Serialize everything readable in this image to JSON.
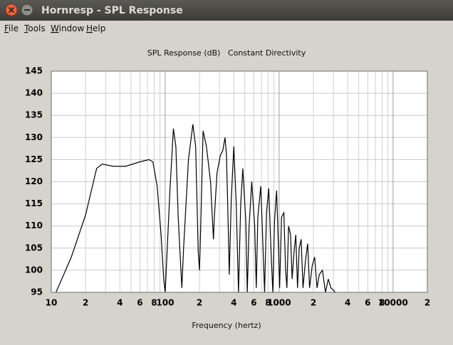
{
  "window": {
    "title": "Hornresp - SPL Response",
    "menu": [
      "File",
      "Tools",
      "Window",
      "Help"
    ]
  },
  "chart_data": {
    "type": "line",
    "title": "SPL Response (dB)   Constant Directivity",
    "x_label": "Frequency (hertz)",
    "log_x": true,
    "grid": true,
    "color": "#000000",
    "xlim": [
      10,
      20000
    ],
    "ylim": [
      95,
      145
    ],
    "yticks": [
      95,
      100,
      105,
      110,
      115,
      120,
      125,
      130,
      135,
      140,
      145
    ],
    "xticks": [
      10,
      {
        "value": 20,
        "label": "2"
      },
      {
        "value": 40,
        "label": "4"
      },
      {
        "value": 60,
        "label": "6"
      },
      {
        "value": 80,
        "label": "8"
      },
      100,
      {
        "value": 200,
        "label": "2"
      },
      {
        "value": 400,
        "label": "4"
      },
      {
        "value": 600,
        "label": "6"
      },
      {
        "value": 800,
        "label": "8"
      },
      1000,
      {
        "value": 2000,
        "label": "2"
      },
      {
        "value": 4000,
        "label": "4"
      },
      {
        "value": 6000,
        "label": "6"
      },
      {
        "value": 8000,
        "label": "8"
      },
      10000,
      {
        "value": 20000,
        "label": "2"
      }
    ],
    "xminor_ticks": [
      30,
      50,
      70,
      90,
      300,
      500,
      700,
      900,
      3000,
      5000,
      7000,
      9000
    ],
    "x": [
      11,
      15,
      20,
      25,
      28,
      35,
      45,
      60,
      72,
      78,
      85,
      92,
      97,
      100,
      110,
      118,
      124,
      130,
      140,
      145,
      160,
      175,
      185,
      195,
      200,
      205,
      215,
      230,
      250,
      265,
      270,
      285,
      305,
      320,
      335,
      345,
      355,
      365,
      380,
      400,
      420,
      440,
      460,
      480,
      510,
      525,
      545,
      575,
      610,
      630,
      650,
      690,
      720,
      745,
      775,
      810,
      850,
      880,
      910,
      950,
      990,
      1010,
      1050,
      1100,
      1140,
      1170,
      1210,
      1260,
      1300,
      1350,
      1400,
      1450,
      1500,
      1560,
      1620,
      1700,
      1780,
      1850,
      1950,
      2050,
      2150,
      2250,
      2400,
      2550,
      2700,
      2850,
      3000,
      3100
    ],
    "values": [
      95,
      103,
      112.5,
      123,
      124,
      123.5,
      123.5,
      124.5,
      125,
      124.5,
      119,
      108,
      98,
      95,
      118,
      132,
      128,
      112,
      96,
      105,
      125,
      133,
      128,
      104,
      100,
      110,
      131.5,
      128,
      120,
      107,
      112,
      122,
      126,
      127,
      130,
      126,
      113,
      99,
      116,
      128,
      115,
      95,
      115,
      123,
      111,
      95,
      110,
      120,
      110,
      96,
      112,
      119,
      106,
      95,
      113,
      118.5,
      104,
      95,
      111,
      118,
      104,
      96,
      112,
      113,
      100,
      96,
      110,
      108,
      98,
      104,
      108,
      96,
      105,
      107,
      96,
      102,
      106,
      96,
      101,
      103,
      96,
      99,
      100,
      95,
      98,
      96,
      95.5,
      95
    ]
  }
}
